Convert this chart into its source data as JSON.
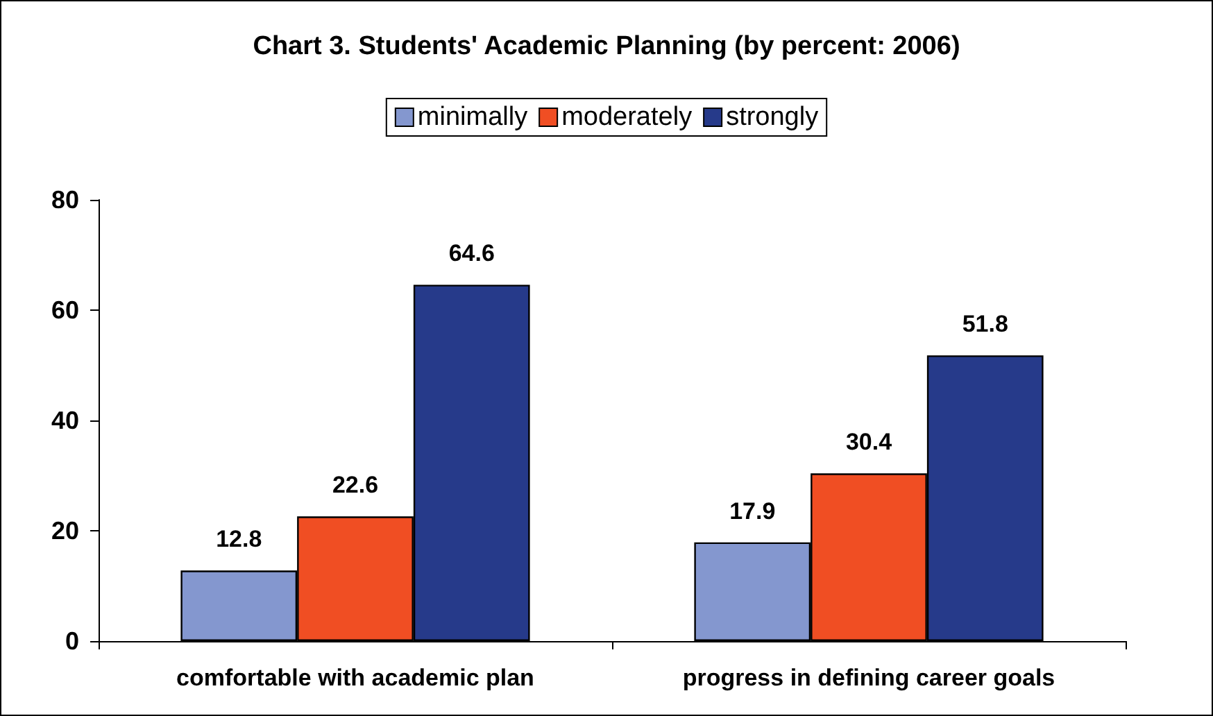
{
  "chart_data": {
    "type": "bar",
    "title": "Chart 3. Students' Academic Planning (by percent: 2006)",
    "categories": [
      "comfortable with academic plan",
      "progress in defining career goals"
    ],
    "series": [
      {
        "name": "minimally",
        "color": "#8497cf",
        "values": [
          12.8,
          17.9
        ]
      },
      {
        "name": "moderately",
        "color": "#f04e23",
        "values": [
          22.6,
          30.4
        ]
      },
      {
        "name": "strongly",
        "color": "#263a8a",
        "values": [
          64.6,
          51.8
        ]
      }
    ],
    "ylim": [
      0,
      80
    ],
    "yticks": [
      0,
      20,
      40,
      60,
      80
    ],
    "grid": false,
    "legend": "top",
    "data_labels": true
  }
}
